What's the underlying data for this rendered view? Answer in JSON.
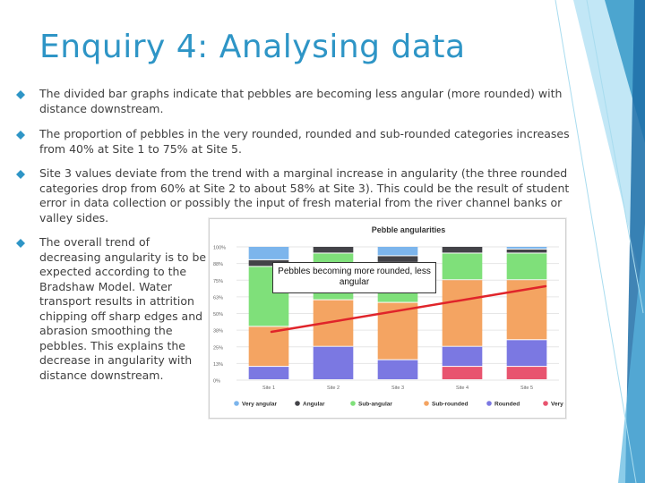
{
  "slide": {
    "title": "Enquiry 4: Analysing data",
    "bullets": [
      {
        "text": "The divided bar graphs indicate that pebbles are becoming less angular (more rounded) with distance downstream."
      },
      {
        "text": "The proportion of pebbles in the very rounded, rounded and sub-rounded categories increases from 40% at Site 1 to 75% at Site 5."
      },
      {
        "text": "Site 3 values deviate from the trend with a marginal increase in angularity (the three rounded categories drop from 60% at Site 2 to about 58% at Site 3). This could be the result of student error in data collection or possibly the input of fresh material from the river channel banks or valley sides."
      },
      {
        "text": "The overall trend of decreasing angularity is to be expected according to the Bradshaw Model. Water transport results in attrition chipping off sharp edges and abrasion smoothing the pebbles. This explains the decrease in angularity with distance downstream."
      }
    ],
    "bullet_color": "#2e95c6",
    "accent_color": "#2e95c6"
  },
  "callout": {
    "text": "Pebbles becoming more rounded, less angular",
    "arrow_color": "#e0242a"
  },
  "chart_data": {
    "type": "bar",
    "stacked": true,
    "title": "Pebble angularities",
    "categories": [
      "Site 1",
      "Site 2",
      "Site 3",
      "Site 4",
      "Site 5"
    ],
    "ylim": [
      0,
      100
    ],
    "y_ticks": [
      0,
      12.5,
      25,
      37.5,
      50,
      62.5,
      75,
      87.5,
      100
    ],
    "y_tick_labels": [
      "0%",
      "13%",
      "25%",
      "38%",
      "50%",
      "63%",
      "75%",
      "88%",
      "100%"
    ],
    "grid": true,
    "legend_position": "bottom",
    "series": [
      {
        "name": "Very rounded",
        "color": "#e8546f",
        "values": [
          0,
          0,
          0,
          10,
          10
        ]
      },
      {
        "name": "Rounded",
        "color": "#7b78e2",
        "values": [
          10,
          25,
          15,
          15,
          20
        ]
      },
      {
        "name": "Sub-rounded",
        "color": "#f4a462",
        "values": [
          30,
          35,
          43,
          50,
          45
        ]
      },
      {
        "name": "Sub-angular",
        "color": "#7fe07a",
        "values": [
          45,
          35,
          30,
          20,
          20
        ]
      },
      {
        "name": "Angular",
        "color": "#434348",
        "values": [
          5,
          5,
          5,
          5,
          3
        ]
      },
      {
        "name": "Very angular",
        "color": "#7cb5ec",
        "values": [
          10,
          0,
          7,
          0,
          2
        ]
      }
    ],
    "legend_order": [
      "Very angular",
      "Angular",
      "Sub-angular",
      "Sub-rounded",
      "Rounded",
      "Very rounded"
    ]
  }
}
